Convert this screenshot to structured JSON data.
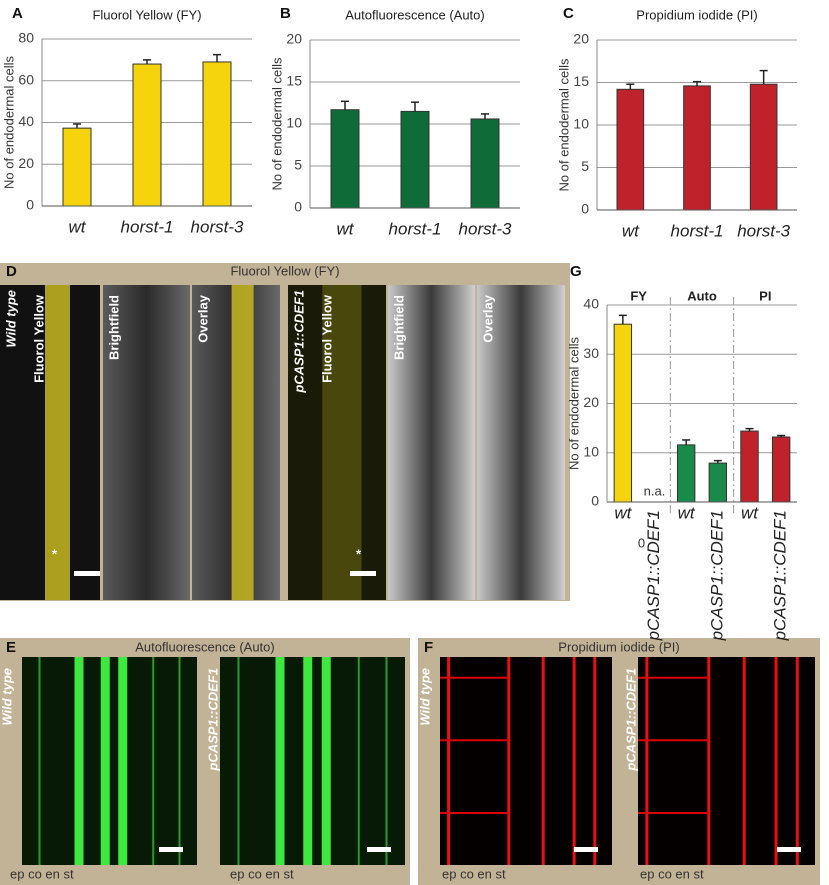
{
  "chart_data": [
    {
      "type": "bar",
      "panel": "A",
      "title": "Fluorol Yellow (FY)",
      "y_label": "No of endodermal cells",
      "categories": [
        "wt",
        "horst-1",
        "horst-3"
      ],
      "values": [
        37.3,
        68,
        69
      ],
      "errors": [
        2,
        2,
        3.5
      ],
      "color": "#f5d40e",
      "ylim": [
        0,
        80
      ],
      "yticks": [
        0,
        20,
        40,
        60,
        80
      ],
      "grid": true
    },
    {
      "type": "bar",
      "panel": "B",
      "title": "Autofluorescence (Auto)",
      "y_label": "No of endodermal cells",
      "categories": [
        "wt",
        "horst-1",
        "horst-3"
      ],
      "values": [
        11.7,
        11.5,
        10.6
      ],
      "errors": [
        1,
        1.1,
        0.6
      ],
      "color": "#0f6b38",
      "ylim": [
        0,
        20
      ],
      "yticks": [
        0,
        5,
        10,
        15,
        20
      ],
      "grid": true
    },
    {
      "type": "bar",
      "panel": "C",
      "title": "Propidium iodide (PI)",
      "y_label": "No of endodermal cells",
      "categories": [
        "wt",
        "horst-1",
        "horst-3"
      ],
      "values": [
        14.2,
        14.6,
        14.8
      ],
      "errors": [
        0.6,
        0.5,
        1.6
      ],
      "color": "#c0222c",
      "ylim": [
        0,
        20
      ],
      "yticks": [
        0,
        5,
        10,
        15,
        20
      ],
      "grid": true
    },
    {
      "type": "bar",
      "panel": "G",
      "y_label": "No of endodermal cells",
      "groups": [
        "FY",
        "Auto",
        "PI"
      ],
      "categories": [
        "wt",
        "pCASP1::CDEF1",
        "wt",
        "pCASP1::CDEF1",
        "wt",
        "pCASP1::CDEF1"
      ],
      "values": [
        36.1,
        null,
        11.6,
        7.9,
        14.4,
        13.2
      ],
      "errors": [
        1.8,
        null,
        1,
        0.5,
        0.5,
        0.3
      ],
      "colors": [
        "#f5d40e",
        "#f5d40e",
        "#1a8a4a",
        "#1a8a4a",
        "#c0222c",
        "#c0222c"
      ],
      "annotations": [
        "n.a.",
        "0"
      ],
      "ylim": [
        0,
        40
      ],
      "yticks": [
        0,
        10,
        20,
        30,
        40
      ],
      "grid": true
    }
  ],
  "panels": [
    {
      "label": "D",
      "title": "Fluorol Yellow (FY)",
      "rows": [
        {
          "row_label": "Wild type",
          "image_labels": [
            "Fluorol Yellow",
            "Brightfield",
            "Overlay"
          ],
          "marker": "*"
        },
        {
          "row_label": "pCASP1::CDEF1",
          "image_labels": [
            "Fluorol Yellow",
            "Brightfield",
            "Overlay"
          ],
          "marker": "*"
        }
      ]
    },
    {
      "label": "E",
      "title": "Autofluorescence (Auto)",
      "rows": [
        {
          "row_label": "Wild type",
          "tissues": "ep co en st"
        },
        {
          "row_label": "pCASP1::CDEF1",
          "tissues": "ep  co en st"
        }
      ]
    },
    {
      "label": "F",
      "title": "Propidium iodide (PI)",
      "rows": [
        {
          "row_label": "Wild type",
          "tissues": "ep  co en st"
        },
        {
          "row_label": "pCASP1::CDEF1",
          "tissues": "ep co en st"
        }
      ]
    }
  ]
}
